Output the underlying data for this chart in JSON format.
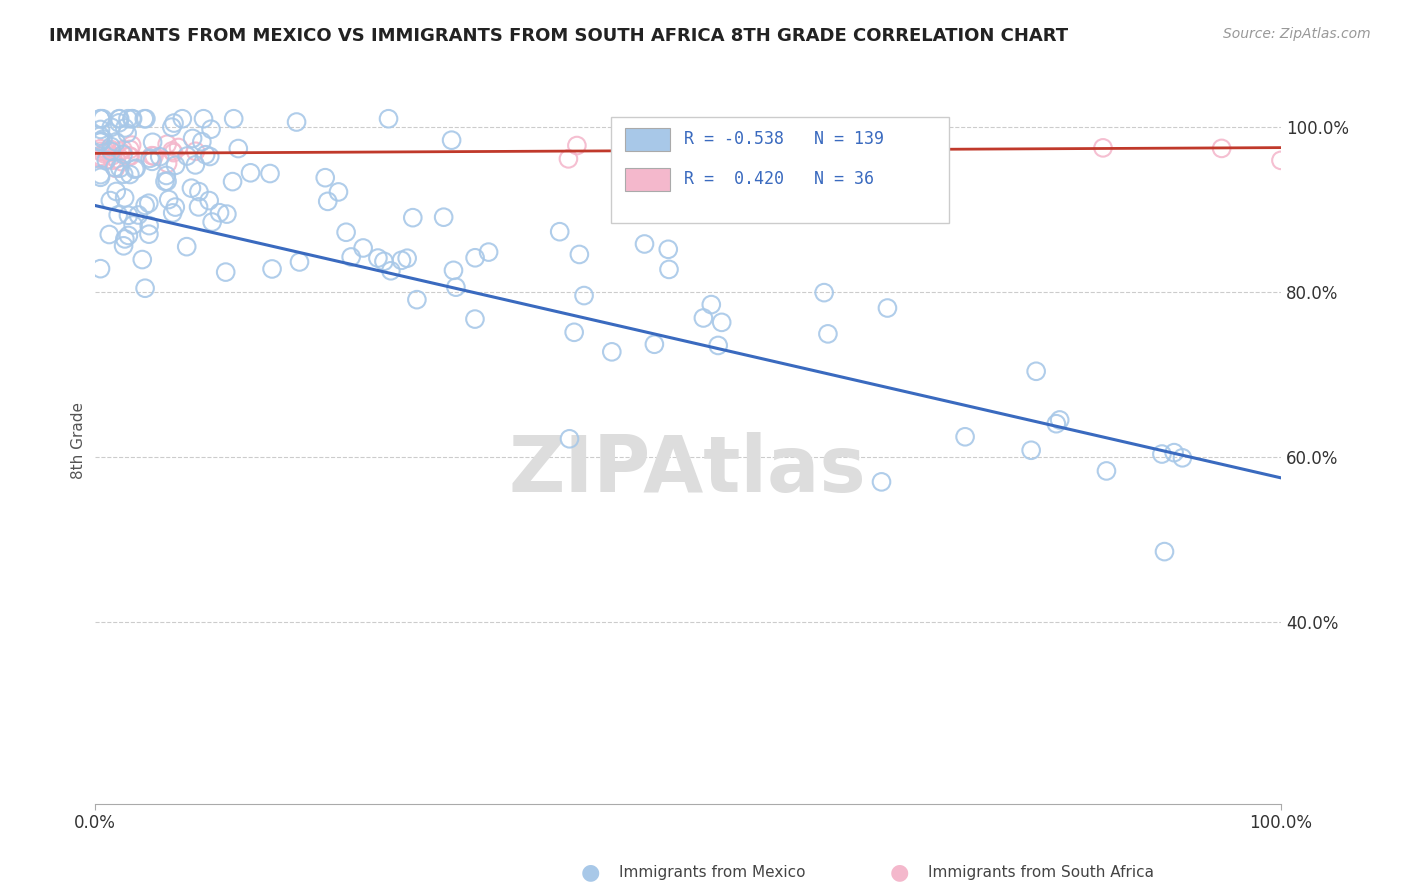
{
  "title": "IMMIGRANTS FROM MEXICO VS IMMIGRANTS FROM SOUTH AFRICA 8TH GRADE CORRELATION CHART",
  "source_text": "Source: ZipAtlas.com",
  "ylabel": "8th Grade",
  "r_mexico": -0.538,
  "n_mexico": 139,
  "r_south_africa": 0.42,
  "n_south_africa": 36,
  "color_mexico": "#a8c8e8",
  "color_south_africa": "#f4b8cc",
  "line_color_mexico": "#3a6abf",
  "line_color_south_africa": "#c0392b",
  "legend_text_color": "#3a6abf",
  "watermark": "ZIPAtlas",
  "xlim": [
    0.0,
    1.0
  ],
  "ylim": [
    0.18,
    1.06
  ],
  "trendline_mx_x0": 0.0,
  "trendline_mx_y0": 0.905,
  "trendline_mx_x1": 1.0,
  "trendline_mx_y1": 0.575,
  "trendline_sa_x0": 0.0,
  "trendline_sa_y0": 0.968,
  "trendline_sa_x1": 1.0,
  "trendline_sa_y1": 0.975
}
